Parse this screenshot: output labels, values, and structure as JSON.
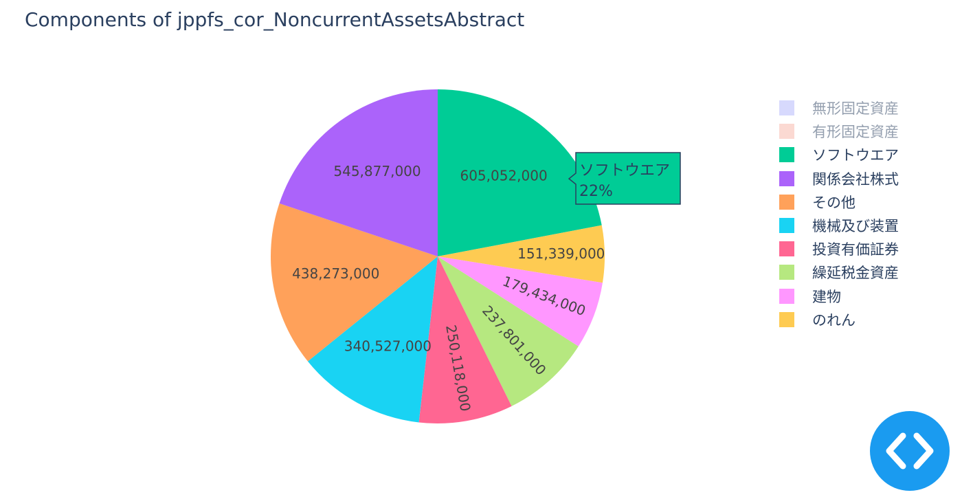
{
  "chart_data": {
    "type": "pie",
    "title": "Components of jppfs_cor_NoncurrentAssetsAbstract",
    "slices": [
      {
        "label": "ソフトウエア",
        "value": 605052000,
        "display": "605,052,000",
        "color": "#00cc96",
        "visible": true
      },
      {
        "label": "のれん",
        "value": 151339000,
        "display": "151,339,000",
        "color": "#fecb52",
        "visible": true
      },
      {
        "label": "建物",
        "value": 179434000,
        "display": "179,434,000",
        "color": "#ff97ff",
        "visible": true
      },
      {
        "label": "繰延税金資産",
        "value": 237801000,
        "display": "237,801,000",
        "color": "#b6e880",
        "visible": true
      },
      {
        "label": "投資有価証券",
        "value": 250118000,
        "display": "250,118,000",
        "color": "#ff6692",
        "visible": true
      },
      {
        "label": "機械及び装置",
        "value": 340527000,
        "display": "340,527,000",
        "color": "#19d3f3",
        "visible": true
      },
      {
        "label": "その他",
        "value": 438273000,
        "display": "438,273,000",
        "color": "#ffa15a",
        "visible": true
      },
      {
        "label": "関係会社株式",
        "value": 545877000,
        "display": "545,877,000",
        "color": "#ab63fa",
        "visible": true
      }
    ],
    "legend": [
      {
        "label": "無形固定資産",
        "color": "#b0b4fb",
        "visible": false
      },
      {
        "label": "有形固定資産",
        "color": "#f8b3a6",
        "visible": false
      },
      {
        "label": "ソフトウエア",
        "color": "#00cc96",
        "visible": true
      },
      {
        "label": "関係会社株式",
        "color": "#ab63fa",
        "visible": true
      },
      {
        "label": "その他",
        "color": "#ffa15a",
        "visible": true
      },
      {
        "label": "機械及び装置",
        "color": "#19d3f3",
        "visible": true
      },
      {
        "label": "投資有価証券",
        "color": "#ff6692",
        "visible": true
      },
      {
        "label": "繰延税金資産",
        "color": "#b6e880",
        "visible": true
      },
      {
        "label": "建物",
        "color": "#ff97ff",
        "visible": true
      },
      {
        "label": "のれん",
        "color": "#fecb52",
        "visible": true
      }
    ],
    "legend_placement": "right",
    "hover": {
      "label": "ソフトウエア",
      "percent": "22%"
    }
  },
  "code_button": {
    "icon": "code-brackets-icon",
    "color": "#1a9bf0"
  }
}
